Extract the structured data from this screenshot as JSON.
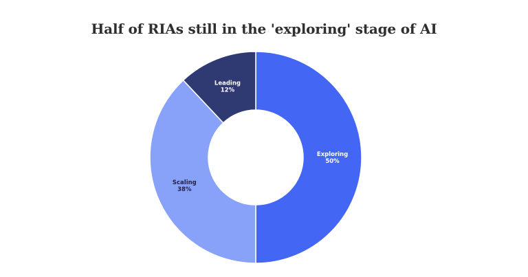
{
  "chart_data": {
    "type": "pie",
    "title": "Half of RIAs still in the 'exploring' stage of AI",
    "donut": true,
    "slices": [
      {
        "label": "Exploring",
        "value": 50,
        "value_label": "50%",
        "color": "#4466f5",
        "text_color": "#ffffff"
      },
      {
        "label": "Scaling",
        "value": 38,
        "value_label": "38%",
        "color": "#88a1f9",
        "text_color": "#1f2440"
      },
      {
        "label": "Leading",
        "value": 12,
        "value_label": "12%",
        "color": "#2f3a73",
        "text_color": "#ffffff"
      }
    ]
  }
}
